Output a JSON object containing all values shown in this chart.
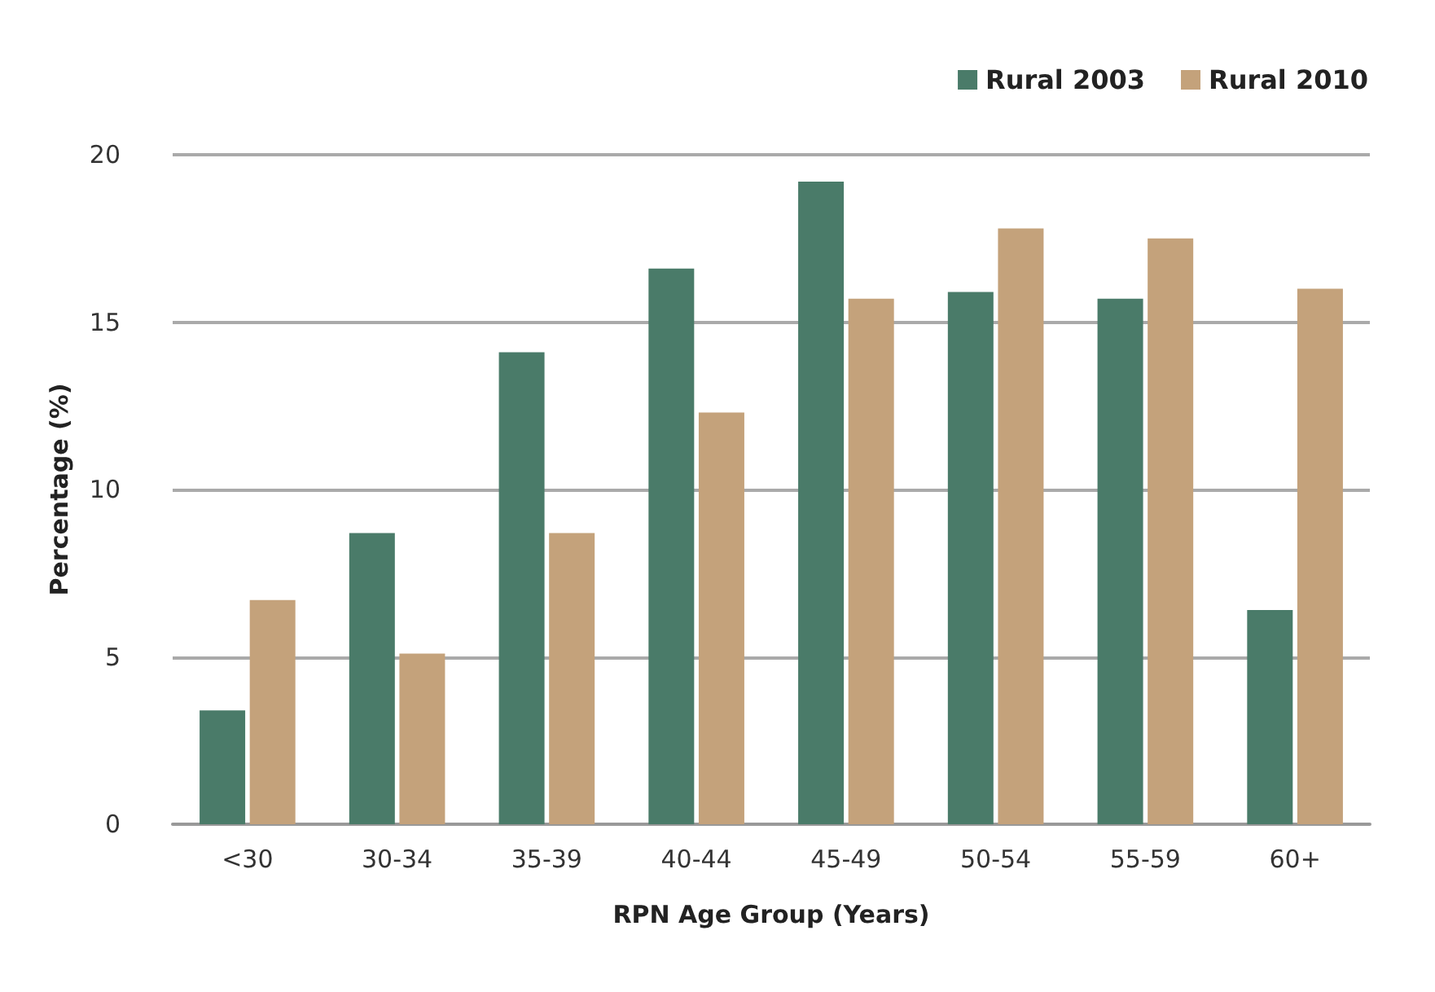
{
  "chart_data": {
    "type": "bar",
    "xlabel": "RPN Age Group (Years)",
    "ylabel": "Percentage (%)",
    "categories": [
      "<30",
      "30-34",
      "35-39",
      "40-44",
      "45-49",
      "50-54",
      "55-59",
      "60+"
    ],
    "series": [
      {
        "name": "Rural 2003",
        "color": "#4a7b69",
        "values": [
          3.4,
          8.7,
          14.1,
          16.6,
          19.2,
          15.9,
          15.7,
          6.4
        ]
      },
      {
        "name": "Rural 2010",
        "color": "#c4a27b",
        "values": [
          6.7,
          5.1,
          8.7,
          12.3,
          15.7,
          17.8,
          17.5,
          16.0
        ]
      }
    ],
    "ylim": [
      0,
      20
    ],
    "yticks": [
      0,
      5,
      10,
      15,
      20
    ],
    "grid": "y",
    "legend": "top right"
  }
}
